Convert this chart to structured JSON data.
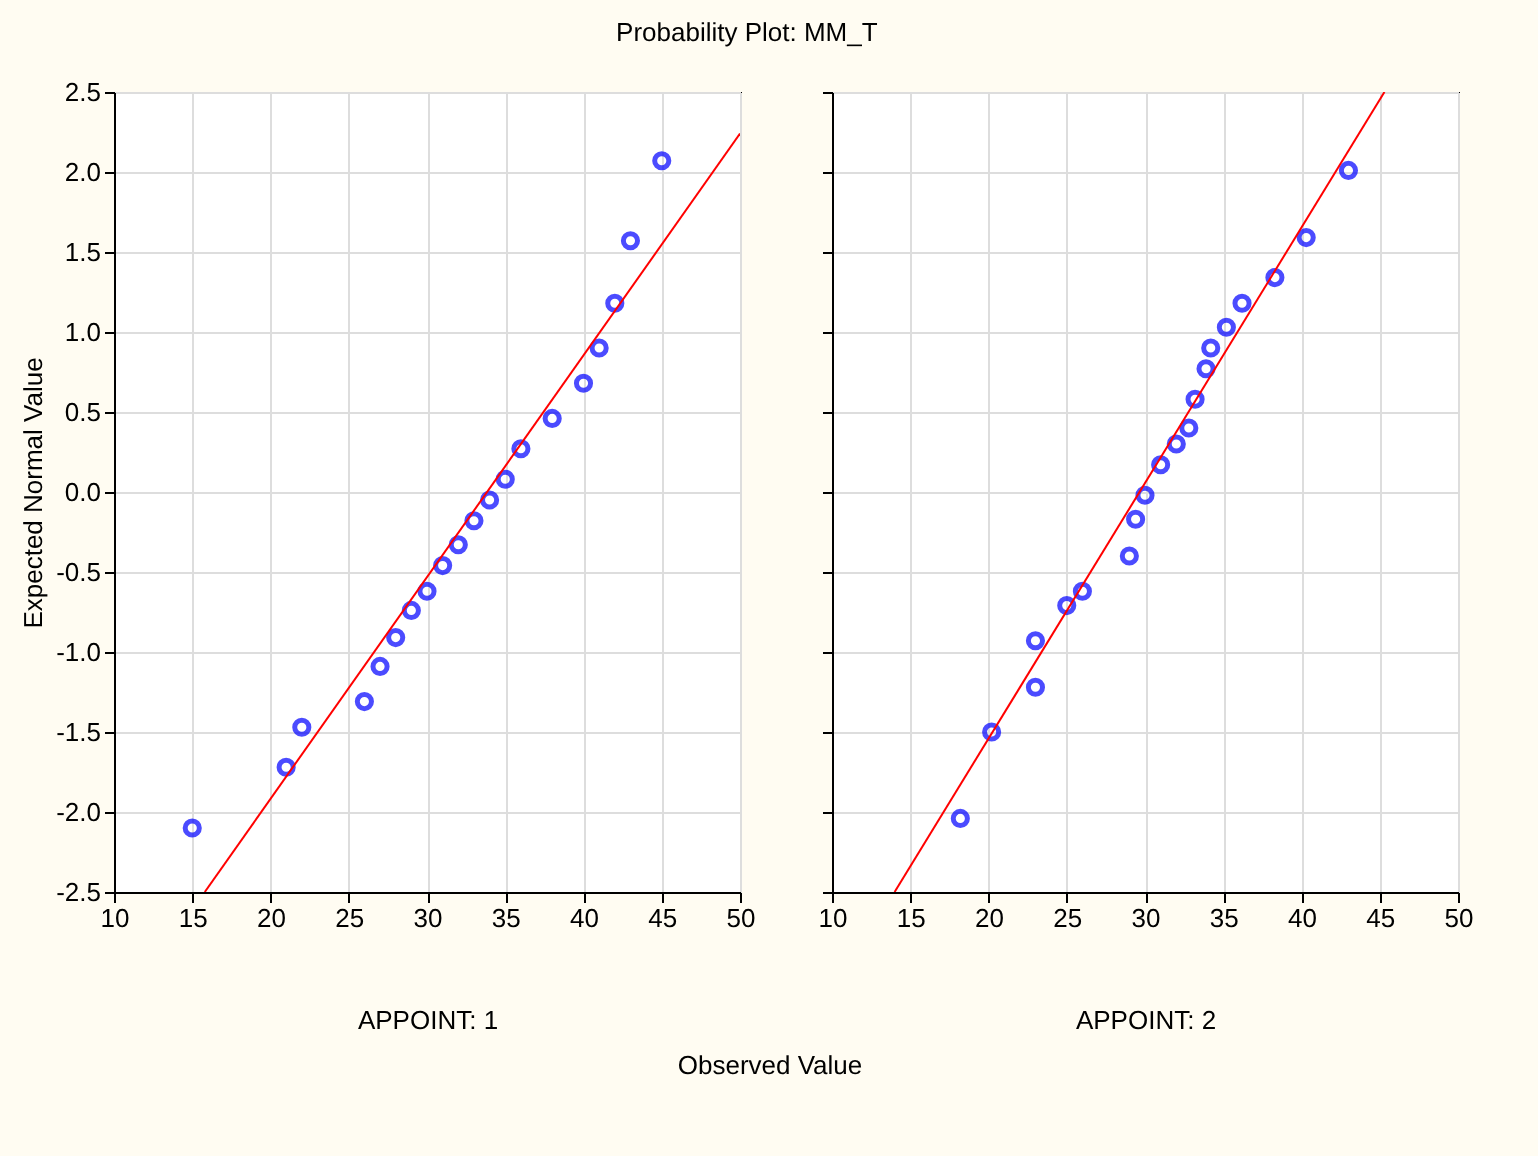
{
  "chart_data": [
    {
      "type": "scatter",
      "title": "Probability Plot: MM_T",
      "ylabel": "Expected Normal Value",
      "xlabel": "APPOINT: 1",
      "annotations": [
        "Observed Value"
      ],
      "xlim": [
        10,
        50
      ],
      "xticks": [
        10,
        15,
        20,
        25,
        30,
        35,
        40,
        45,
        50
      ],
      "ylim": [
        -2.5,
        2.5
      ],
      "yticks": [
        -2.5,
        {
          "value": -2,
          "label": "-2.0"
        },
        -1.5,
        {
          "value": -1,
          "label": "-1.0"
        },
        -0.5,
        {
          "value": 0,
          "label": "0.0"
        },
        0.5,
        {
          "value": 1,
          "label": "1.0"
        },
        1.5,
        {
          "value": 2,
          "label": "2.0"
        },
        2.5
      ],
      "grid": true,
      "series": [
        {
          "type": "scatter",
          "color": "#0000ff",
          "marker": "circle",
          "x": [
            15,
            21,
            22,
            26,
            27,
            28,
            29,
            30,
            31,
            32,
            33,
            34,
            35,
            36,
            38,
            40,
            41,
            42,
            43,
            45
          ],
          "values": [
            -2.1,
            -1.72,
            -1.47,
            -1.31,
            -1.09,
            -0.91,
            -0.74,
            -0.62,
            -0.46,
            -0.33,
            -0.18,
            -0.05,
            0.08,
            0.27,
            0.46,
            0.68,
            0.9,
            1.18,
            1.57,
            2.07
          ]
        },
        {
          "type": "line",
          "color": "#ff0000",
          "x": [
            15.8,
            50
          ],
          "values": [
            -2.5,
            2.24
          ]
        }
      ]
    },
    {
      "type": "scatter",
      "xlabel": "APPOINT: 2",
      "xlim": [
        10,
        50
      ],
      "xticks": [
        10,
        15,
        20,
        25,
        30,
        35,
        40,
        45,
        50
      ],
      "ylim": [
        -2.5,
        2.5
      ],
      "yticks": [
        -2.5,
        -2,
        -1.5,
        -1,
        -0.5,
        0,
        0.5,
        1,
        1.5,
        2,
        2.5
      ],
      "grid": true,
      "tick_labels": "x",
      "series": [
        {
          "type": "scatter",
          "color": "#0000ff",
          "marker": "circle",
          "x": [
            18.2,
            20.2,
            23,
            23,
            25,
            26,
            29,
            29.4,
            30,
            31,
            32,
            32.8,
            33.2,
            33.9,
            34.2,
            35.2,
            36.2,
            38.3,
            40.3,
            43
          ],
          "values": [
            -2.04,
            -1.5,
            -1.22,
            -0.93,
            -0.71,
            -0.62,
            -0.4,
            -0.17,
            -0.02,
            0.17,
            0.3,
            0.4,
            0.58,
            0.77,
            0.9,
            1.03,
            1.18,
            1.34,
            1.59,
            2.01
          ]
        },
        {
          "type": "line",
          "color": "#ff0000",
          "x": [
            14,
            45.3
          ],
          "values": [
            -2.5,
            2.5
          ]
        }
      ]
    }
  ]
}
